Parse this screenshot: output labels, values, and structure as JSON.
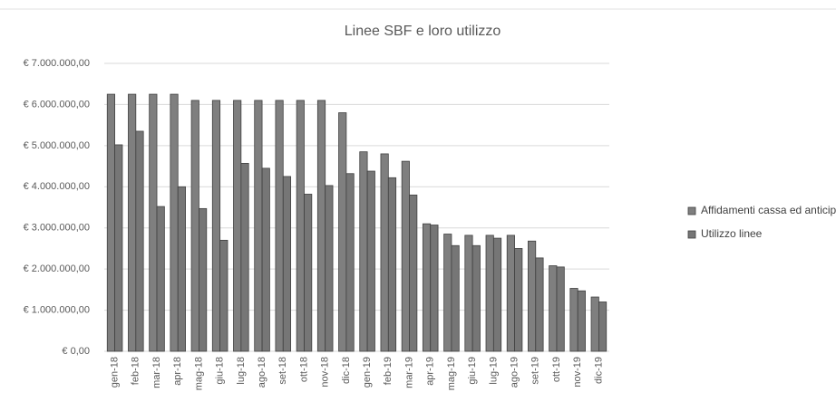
{
  "chart_data": {
    "type": "bar",
    "title": "Linee SBF e loro utilizzo",
    "categories": [
      "gen-18",
      "feb-18",
      "mar-18",
      "apr-18",
      "mag-18",
      "giu-18",
      "lug-18",
      "ago-18",
      "set-18",
      "ott-18",
      "nov-18",
      "dic-18",
      "gen-19",
      "feb-19",
      "mar-19",
      "apr-19",
      "mag-19",
      "giu-19",
      "lug-19",
      "ago-19",
      "set-19",
      "ott-19",
      "nov-19",
      "dic-19"
    ],
    "series": [
      {
        "name": "Affidamenti cassa ed anticipi fatture",
        "color": "#7f7f7f",
        "values": [
          6250000,
          6250000,
          6250000,
          6250000,
          6100000,
          6100000,
          6100000,
          6100000,
          6100000,
          6100000,
          6100000,
          5800000,
          4850000,
          4800000,
          4620000,
          3100000,
          2850000,
          2820000,
          2820000,
          2820000,
          2680000,
          2080000,
          1530000,
          1320000
        ]
      },
      {
        "name": "Utilizzo linee",
        "color": "#767676",
        "values": [
          5020000,
          5350000,
          3520000,
          4000000,
          3470000,
          2700000,
          4570000,
          4450000,
          4250000,
          3820000,
          4030000,
          4320000,
          4380000,
          4220000,
          3800000,
          3070000,
          2570000,
          2570000,
          2750000,
          2500000,
          2270000,
          2050000,
          1470000,
          1200000
        ]
      }
    ],
    "ylim": [
      0,
      7000000
    ],
    "yticks": [
      {
        "value": 0,
        "label": "€ 0,00"
      },
      {
        "value": 1000000,
        "label": "€ 1.000.000,00"
      },
      {
        "value": 2000000,
        "label": "€ 2.000.000,00"
      },
      {
        "value": 3000000,
        "label": "€ 3.000.000,00"
      },
      {
        "value": 4000000,
        "label": "€ 4.000.000,00"
      },
      {
        "value": 5000000,
        "label": "€ 5.000.000,00"
      },
      {
        "value": 6000000,
        "label": "€ 6.000.000,00"
      },
      {
        "value": 7000000,
        "label": "€ 7.000.000,00"
      }
    ],
    "grid": true,
    "legend": "right"
  }
}
